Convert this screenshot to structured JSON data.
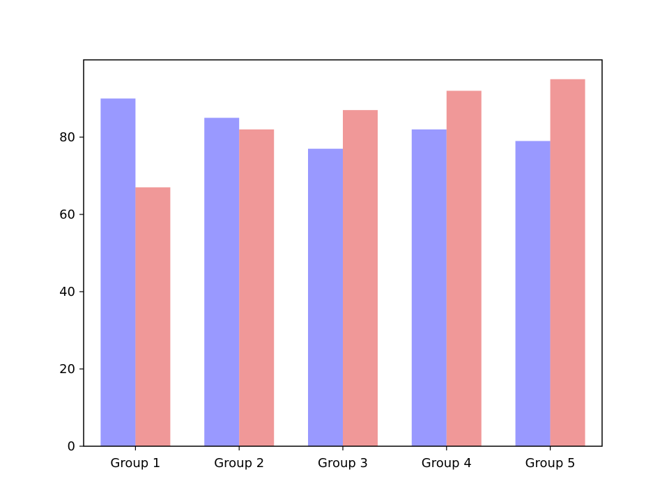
{
  "chart_data": {
    "type": "bar",
    "title": "",
    "xlabel": "",
    "ylabel": "",
    "categories": [
      "Group 1",
      "Group 2",
      "Group 3",
      "Group 4",
      "Group 5"
    ],
    "series": [
      {
        "values": [
          90,
          85,
          77,
          82,
          79
        ],
        "color": "#9999ff"
      },
      {
        "values": [
          67,
          82,
          87,
          92,
          95
        ],
        "color": "#f09898"
      }
    ],
    "ylim": [
      0,
      100
    ],
    "yticks": [
      0,
      20,
      40,
      60,
      80
    ],
    "grid": false,
    "legend": "none"
  }
}
